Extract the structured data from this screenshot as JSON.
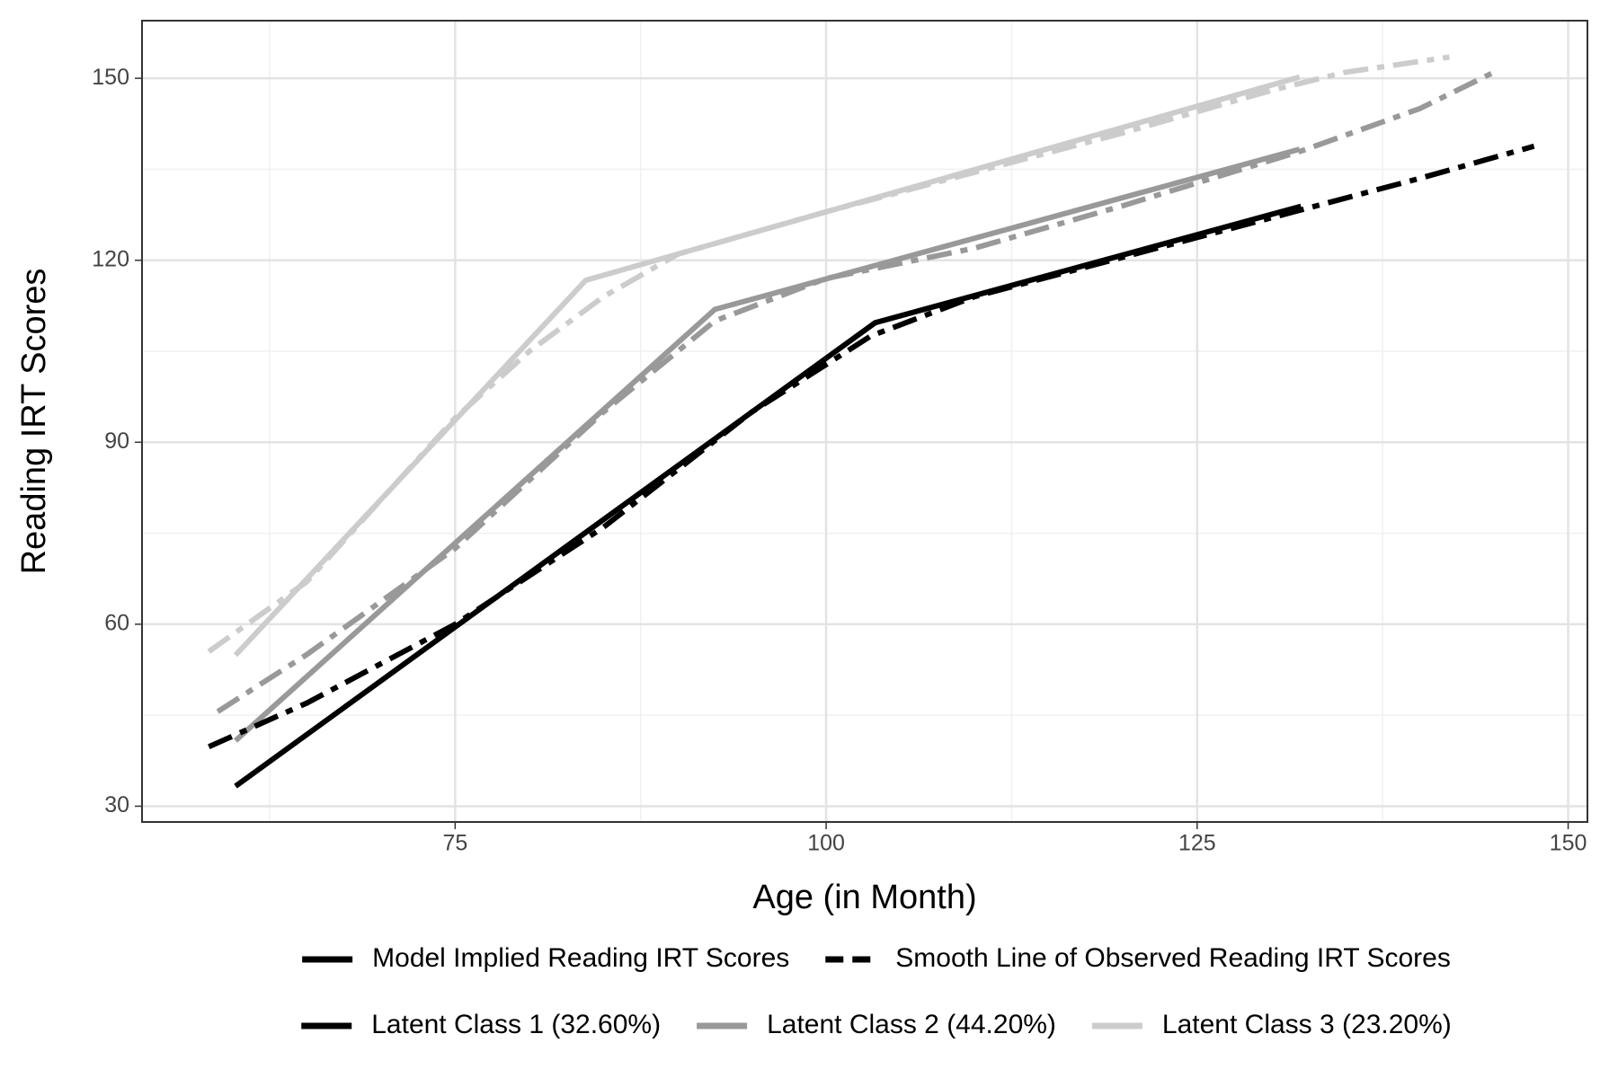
{
  "chart_data": {
    "type": "line",
    "xlabel": "Age (in Month)",
    "ylabel": "Reading IRT Scores",
    "xlim": [
      53.9,
      151.3
    ],
    "ylim": [
      27.4,
      159.5
    ],
    "xticks": [
      75,
      100,
      125,
      150
    ],
    "yticks": [
      30,
      60,
      90,
      120,
      150
    ],
    "x_minor_grid": [
      62.5,
      87.5,
      112.5,
      137.5
    ],
    "y_minor_grid": [
      45,
      75,
      105,
      135
    ],
    "grid": true,
    "legend_position": "bottom",
    "linetypes": [
      {
        "name": "Model Implied Reading IRT Scores",
        "dash": "solid"
      },
      {
        "name": "Smooth Line of Observed Reading IRT Scores",
        "dash": "dotdash"
      }
    ],
    "series": [
      {
        "name": "Latent Class 1 (32.60%)",
        "color": "#000000",
        "dash": "solid",
        "x": [
          60.2,
          103.3,
          132
        ],
        "values": [
          33.3,
          109.7,
          128.9
        ]
      },
      {
        "name": "Latent Class 1 (32.60%)",
        "color": "#000000",
        "dash": "dotdash",
        "x": [
          58.4,
          65,
          75,
          85,
          95,
          103,
          110,
          120,
          130,
          140,
          147.7
        ],
        "values": [
          39.8,
          47,
          60,
          76,
          95,
          107.5,
          114,
          120.5,
          127,
          133.5,
          138.8
        ]
      },
      {
        "name": "Latent Class 2 (44.20%)",
        "color": "#999999",
        "dash": "solid",
        "x": [
          60.2,
          92.5,
          131.9
        ],
        "values": [
          40.8,
          111.9,
          138.3
        ]
      },
      {
        "name": "Latent Class 2 (44.20%)",
        "color": "#999999",
        "dash": "dotdash",
        "x": [
          59,
          65,
          75,
          85,
          92.5,
          100,
          110,
          120,
          132,
          140,
          145
        ],
        "values": [
          45.6,
          55,
          72.5,
          95,
          110,
          117,
          122,
          129,
          138,
          145,
          151
        ]
      },
      {
        "name": "Latent Class 3 (23.20%)",
        "color": "#cccccc",
        "dash": "solid",
        "x": [
          60.2,
          83.8,
          131.9
        ],
        "values": [
          54.9,
          116.7,
          150.2
        ]
      },
      {
        "name": "Latent Class 3 (23.20%)",
        "color": "#cccccc",
        "dash": "dotdash",
        "x": [
          58.4,
          65,
          75,
          80,
          85,
          90,
          100,
          110,
          120,
          130,
          135,
          142
        ],
        "values": [
          55.5,
          67,
          94,
          105,
          114,
          121,
          128,
          134.5,
          141,
          148,
          151,
          153.5
        ]
      }
    ]
  }
}
